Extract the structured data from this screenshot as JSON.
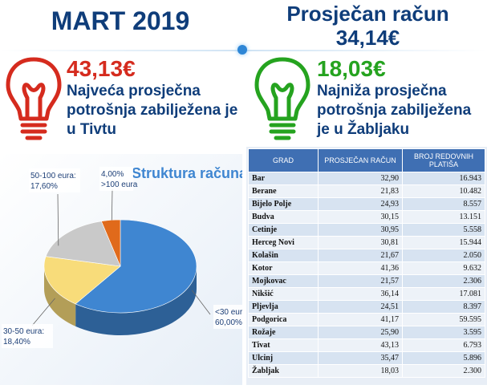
{
  "header": {
    "left_title": "MART 2019",
    "right_title_line1": "Prosječan račun",
    "right_title_line2": "34,14€"
  },
  "highest": {
    "amount": "43,13€",
    "text": "Najveća prosječna potrošnja zabilježena je u Tivtu",
    "icon": "red-lightbulb-icon",
    "color": "#d52b1e"
  },
  "lowest": {
    "amount": "18,03€",
    "text": "Najniža prosječna potrošnja zabilježena je u Žabljaku",
    "icon": "green-lightbulb-icon",
    "color": "#25a31f"
  },
  "chart_data": {
    "type": "pie",
    "title": "Struktura računa",
    "slices": [
      {
        "label": "<30 eura:",
        "value_label": "60,00%",
        "value": 60.0,
        "color": "#3f86d1"
      },
      {
        "label": "30-50 eura:",
        "value_label": "18,40%",
        "value": 18.4,
        "color": "#f8dc7a"
      },
      {
        "label": "50-100 eura:",
        "value_label": "17,60%",
        "value": 17.6,
        "color": "#c9c9c9"
      },
      {
        "label": ">100 eura",
        "value_label": "4,00%",
        "value": 4.0,
        "color": "#e06a1b"
      }
    ]
  },
  "table": {
    "headers": [
      "GRAD",
      "PROSJEČAN RAČUN",
      "BROJ REDOVNIH PLATIŠA"
    ],
    "rows": [
      [
        "Bar",
        "32,90",
        "16.943"
      ],
      [
        "Berane",
        "21,83",
        "10.482"
      ],
      [
        "Bijelo Polje",
        "24,93",
        "8.557"
      ],
      [
        "Budva",
        "30,15",
        "13.151"
      ],
      [
        "Cetinje",
        "30,95",
        "5.558"
      ],
      [
        "Herceg Novi",
        "30,81",
        "15.944"
      ],
      [
        "Kolašin",
        "21,67",
        "2.050"
      ],
      [
        "Kotor",
        "41,36",
        "9.632"
      ],
      [
        "Mojkovac",
        "21,57",
        "2.306"
      ],
      [
        "Nikšić",
        "36,14",
        "17.081"
      ],
      [
        "Pljevlja",
        "24,51",
        "8.397"
      ],
      [
        "Podgorica",
        "41,17",
        "59.595"
      ],
      [
        "Rožaje",
        "25,90",
        "3.595"
      ],
      [
        "Tivat",
        "43,13",
        "6.793"
      ],
      [
        "Ulcinj",
        "35,47",
        "5.896"
      ],
      [
        "Žabljak",
        "18,03",
        "2.300"
      ]
    ]
  }
}
